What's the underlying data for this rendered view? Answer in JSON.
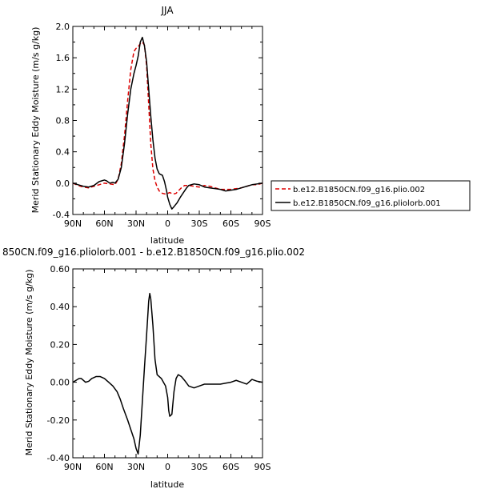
{
  "chart_data": [
    {
      "type": "line",
      "title": "JJA",
      "xlabel": "latitude",
      "ylabel": "Merid Stationary Eddy Moisture (m/s g/kg)",
      "xlim": [
        90,
        -90
      ],
      "ylim": [
        -0.4,
        2.0
      ],
      "x_ticks": [
        {
          "value": 90,
          "label": "90N"
        },
        {
          "value": 60,
          "label": "60N"
        },
        {
          "value": 30,
          "label": "30N"
        },
        {
          "value": 0,
          "label": "0"
        },
        {
          "value": -30,
          "label": "30S"
        },
        {
          "value": -60,
          "label": "60S"
        },
        {
          "value": -90,
          "label": "90S"
        }
      ],
      "y_ticks": [
        {
          "value": -0.4,
          "label": "-0.4"
        },
        {
          "value": 0.0,
          "label": "0.0"
        },
        {
          "value": 0.4,
          "label": "0.4"
        },
        {
          "value": 0.8,
          "label": "0.8"
        },
        {
          "value": 1.2,
          "label": "1.2"
        },
        {
          "value": 1.6,
          "label": "1.6"
        },
        {
          "value": 2.0,
          "label": "2.0"
        }
      ],
      "legend": "outside-right",
      "series": [
        {
          "name": "b.e12.B1850CN.f09_g16.plio.002",
          "color": "#dd0000",
          "dash": "dashed",
          "x": [
            90,
            85,
            80,
            75,
            70,
            65,
            60,
            55,
            50,
            47,
            44,
            41,
            38,
            35,
            32,
            30,
            28,
            26,
            24,
            22,
            20,
            18,
            16,
            14,
            12,
            10,
            8,
            5,
            2,
            0,
            -2,
            -5,
            -8,
            -10,
            -13,
            -16,
            -20,
            -25,
            -30,
            -35,
            -40,
            -50,
            -60,
            -70,
            -80,
            -85,
            -90
          ],
          "y": [
            0.0,
            -0.03,
            -0.05,
            -0.06,
            -0.04,
            -0.02,
            0.0,
            -0.01,
            -0.02,
            0.05,
            0.25,
            0.6,
            1.05,
            1.45,
            1.68,
            1.72,
            1.74,
            1.78,
            1.8,
            1.76,
            1.5,
            1.0,
            0.5,
            0.18,
            0.03,
            -0.05,
            -0.1,
            -0.13,
            -0.14,
            -0.13,
            -0.12,
            -0.14,
            -0.13,
            -0.1,
            -0.06,
            -0.03,
            -0.03,
            -0.04,
            -0.05,
            -0.03,
            -0.04,
            -0.08,
            -0.08,
            -0.06,
            -0.02,
            -0.02,
            0.0
          ]
        },
        {
          "name": "b.e12.B1850CN.f09_g16.pliolorb.001",
          "color": "#000000",
          "dash": "solid",
          "x": [
            90,
            85,
            80,
            75,
            70,
            65,
            60,
            58,
            55,
            52,
            50,
            47,
            44,
            41,
            38,
            35,
            32,
            30,
            28,
            26,
            24,
            22,
            20,
            18,
            16,
            14,
            12,
            10,
            8,
            5,
            3,
            1,
            0,
            -2,
            -4,
            -6,
            -9,
            -12,
            -15,
            -18,
            -20,
            -25,
            -30,
            -35,
            -40,
            -45,
            -50,
            -55,
            -60,
            -65,
            -70,
            -75,
            -80,
            -85,
            -90
          ],
          "y": [
            0.0,
            -0.02,
            -0.04,
            -0.05,
            -0.03,
            0.02,
            0.04,
            0.03,
            0.0,
            0.01,
            0.0,
            0.05,
            0.2,
            0.5,
            0.88,
            1.2,
            1.4,
            1.5,
            1.62,
            1.8,
            1.86,
            1.75,
            1.55,
            1.2,
            0.85,
            0.55,
            0.32,
            0.18,
            0.12,
            0.1,
            0.02,
            -0.1,
            -0.18,
            -0.27,
            -0.33,
            -0.3,
            -0.25,
            -0.18,
            -0.12,
            -0.06,
            -0.03,
            -0.01,
            -0.02,
            -0.05,
            -0.06,
            -0.07,
            -0.08,
            -0.1,
            -0.09,
            -0.08,
            -0.06,
            -0.04,
            -0.02,
            -0.01,
            0.0
          ]
        }
      ]
    },
    {
      "type": "line",
      "title": "850CN.f09_g16.pliolorb.001 - b.e12.B1850CN.f09_g16.plio.002",
      "xlabel": "latitude",
      "ylabel": "Merid Stationary Eddy Moisture (m/s g/kg)",
      "xlim": [
        90,
        -90
      ],
      "ylim": [
        -0.4,
        0.6
      ],
      "x_ticks": [
        {
          "value": 90,
          "label": "90N"
        },
        {
          "value": 60,
          "label": "60N"
        },
        {
          "value": 30,
          "label": "30N"
        },
        {
          "value": 0,
          "label": "0"
        },
        {
          "value": -30,
          "label": "30S"
        },
        {
          "value": -60,
          "label": "60S"
        },
        {
          "value": -90,
          "label": "90S"
        }
      ],
      "y_ticks": [
        {
          "value": -0.4,
          "label": "-0.40"
        },
        {
          "value": -0.2,
          "label": "-0.20"
        },
        {
          "value": 0.0,
          "label": "0.00"
        },
        {
          "value": 0.2,
          "label": "0.20"
        },
        {
          "value": 0.4,
          "label": "0.40"
        },
        {
          "value": 0.6,
          "label": "0.60"
        }
      ],
      "series": [
        {
          "color": "#000000",
          "dash": "solid",
          "x": [
            90,
            87,
            84,
            82,
            80,
            78,
            75,
            72,
            68,
            64,
            60,
            56,
            52,
            48,
            45,
            42,
            38,
            35,
            32,
            30,
            28,
            26,
            24,
            22,
            20,
            18,
            17,
            16,
            14,
            12,
            10,
            8,
            6,
            4,
            2,
            0,
            -1,
            -2,
            -4,
            -6,
            -8,
            -10,
            -13,
            -16,
            -20,
            -25,
            -30,
            -35,
            -40,
            -45,
            -50,
            -55,
            -60,
            -65,
            -70,
            -75,
            -80,
            -85,
            -90
          ],
          "y": [
            0.0,
            0.01,
            0.02,
            0.02,
            0.01,
            0.0,
            0.005,
            0.02,
            0.03,
            0.03,
            0.02,
            0.0,
            -0.02,
            -0.05,
            -0.09,
            -0.14,
            -0.2,
            -0.25,
            -0.3,
            -0.35,
            -0.38,
            -0.28,
            -0.1,
            0.08,
            0.25,
            0.43,
            0.47,
            0.44,
            0.3,
            0.12,
            0.04,
            0.03,
            0.02,
            0.0,
            -0.02,
            -0.08,
            -0.15,
            -0.18,
            -0.17,
            -0.05,
            0.02,
            0.04,
            0.03,
            0.01,
            -0.02,
            -0.03,
            -0.02,
            -0.01,
            -0.01,
            -0.01,
            -0.01,
            -0.005,
            0.0,
            0.01,
            0.0,
            -0.01,
            0.015,
            0.005,
            0.0
          ]
        }
      ]
    }
  ]
}
